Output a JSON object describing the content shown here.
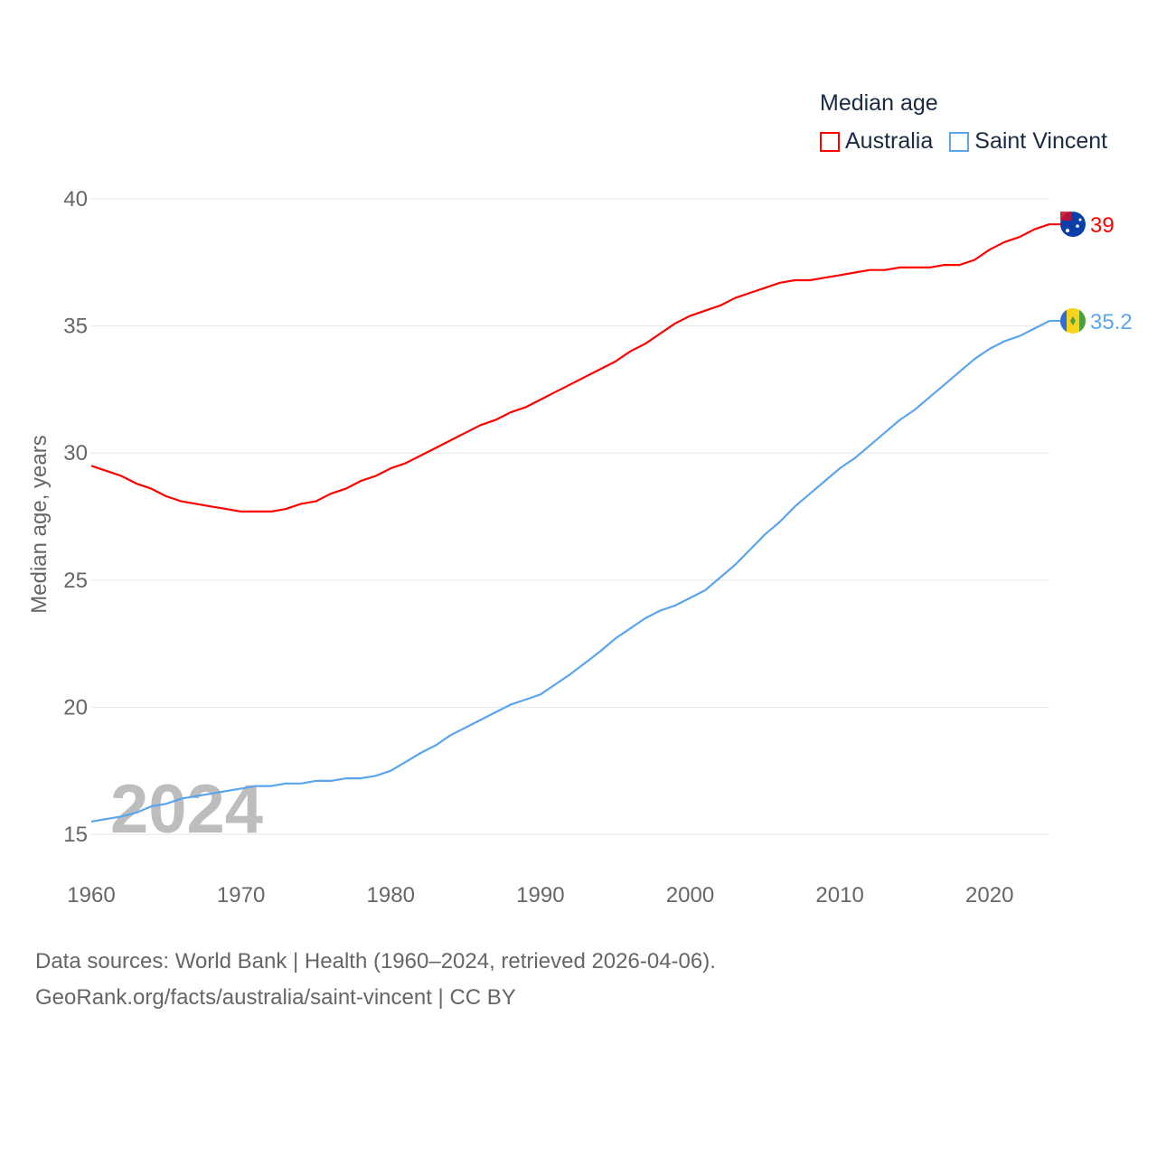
{
  "chart_data": {
    "type": "line",
    "title": "Median age",
    "ylabel": "Median age, years",
    "xlabel": "",
    "xlim": [
      1960,
      2024
    ],
    "ylim": [
      15,
      40
    ],
    "x_ticks": [
      "1960",
      "1970",
      "1980",
      "1990",
      "2000",
      "2010",
      "2020"
    ],
    "y_ticks": [
      "15",
      "20",
      "25",
      "30",
      "35",
      "40"
    ],
    "grid": true,
    "legend_position": "top-right",
    "watermark_year": "2024",
    "x": [
      1960,
      1961,
      1962,
      1963,
      1964,
      1965,
      1966,
      1967,
      1968,
      1969,
      1970,
      1971,
      1972,
      1973,
      1974,
      1975,
      1976,
      1977,
      1978,
      1979,
      1980,
      1981,
      1982,
      1983,
      1984,
      1985,
      1986,
      1987,
      1988,
      1989,
      1990,
      1991,
      1992,
      1993,
      1994,
      1995,
      1996,
      1997,
      1998,
      1999,
      2000,
      2001,
      2002,
      2003,
      2004,
      2005,
      2006,
      2007,
      2008,
      2009,
      2010,
      2011,
      2012,
      2013,
      2014,
      2015,
      2016,
      2017,
      2018,
      2019,
      2020,
      2021,
      2022,
      2023,
      2024
    ],
    "series": [
      {
        "name": "Australia",
        "color": "#ff0000",
        "end_label": "39",
        "values": [
          29.5,
          29.3,
          29.1,
          28.8,
          28.6,
          28.3,
          28.1,
          28.0,
          27.9,
          27.8,
          27.7,
          27.7,
          27.7,
          27.8,
          28.0,
          28.1,
          28.4,
          28.6,
          28.9,
          29.1,
          29.4,
          29.6,
          29.9,
          30.2,
          30.5,
          30.8,
          31.1,
          31.3,
          31.6,
          31.8,
          32.1,
          32.4,
          32.7,
          33.0,
          33.3,
          33.6,
          34.0,
          34.3,
          34.7,
          35.1,
          35.4,
          35.6,
          35.8,
          36.1,
          36.3,
          36.5,
          36.7,
          36.8,
          36.8,
          36.9,
          37.0,
          37.1,
          37.2,
          37.2,
          37.3,
          37.3,
          37.3,
          37.4,
          37.4,
          37.6,
          38.0,
          38.3,
          38.5,
          38.8,
          39.0
        ]
      },
      {
        "name": "Saint Vincent",
        "color": "#5aa5ee",
        "end_label": "35.2",
        "values": [
          15.5,
          15.6,
          15.7,
          15.85,
          16.1,
          16.2,
          16.4,
          16.5,
          16.6,
          16.7,
          16.8,
          16.9,
          16.9,
          17.0,
          17.0,
          17.1,
          17.1,
          17.2,
          17.2,
          17.3,
          17.5,
          17.85,
          18.2,
          18.5,
          18.9,
          19.2,
          19.5,
          19.8,
          20.1,
          20.3,
          20.5,
          20.9,
          21.3,
          21.75,
          22.2,
          22.7,
          23.1,
          23.5,
          23.8,
          24.0,
          24.3,
          24.6,
          25.1,
          25.6,
          26.2,
          26.8,
          27.3,
          27.9,
          28.4,
          28.9,
          29.4,
          29.8,
          30.3,
          30.8,
          31.3,
          31.7,
          32.2,
          32.7,
          33.2,
          33.7,
          34.1,
          34.4,
          34.6,
          34.9,
          35.2
        ]
      }
    ]
  },
  "footer": {
    "line1": "Data sources: World Bank | Health (1960–2024, retrieved 2026-04-06).",
    "line2": "GeoRank.org/facts/australia/saint-vincent | CC BY"
  }
}
